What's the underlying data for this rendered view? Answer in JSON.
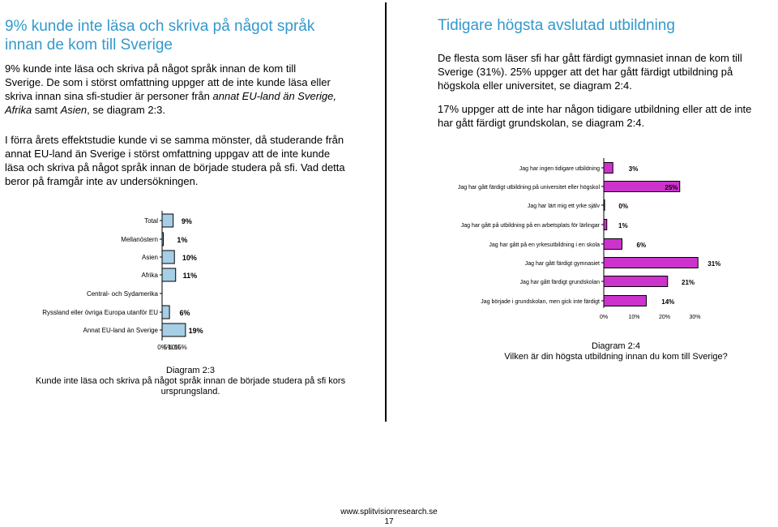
{
  "left": {
    "heading": "9% kunde inte läsa och skriva på något språk innan de kom till Sverige",
    "para1_plain": "9% kunde inte läsa och skriva på något språk innan de kom till Sverige. De som i störst omfattning uppger att de inte kunde läsa eller skriva innan sina sfi-studier är personer från ",
    "para1_italic": "annat EU-land än Sverige, Afrika",
    "para1_mid": " samt ",
    "para1_italic2": "Asien",
    "para1_end": ", se diagram 2:3.",
    "para2": "I förra årets effektstudie kunde vi se samma mönster, då studerande från annat EU-land än Sverige i störst omfattning uppgav att de inte kunde läsa och skriva på något språk innan de började studera på sfi. Vad detta beror på framgår inte av undersökningen.",
    "caption_title": "Diagram 2:3",
    "caption_text": "Kunde inte läsa och skriva på något språk innan de började studera på sfi kors ursprungsland."
  },
  "right": {
    "heading": "Tidigare högsta avslutad utbildning",
    "para1": "De flesta som läser sfi har gått färdigt gymnasiet innan de kom till Sverige (31%). 25% uppger att det har gått färdigt utbildning på högskola eller universitet, se diagram 2:4.",
    "para2": "17% uppger att de inte har någon tidigare utbildning eller att de inte har gått färdigt grundskolan, se diagram 2:4.",
    "caption_title": "Diagram 2:4",
    "caption_text": "Vilken är din högsta utbildning innan du kom till Sverige?"
  },
  "footer": {
    "url": "www.splitvisionresearch.se",
    "page": "17"
  },
  "chart_data": [
    {
      "type": "bar",
      "orientation": "horizontal",
      "categories": [
        "Total",
        "Mellanöstern",
        "Asien",
        "Afrika",
        "Central- och Sydamerika",
        "Ryssland eller övriga Europa utanför EU",
        "Annat EU-land än Sverige"
      ],
      "values": [
        9,
        1,
        10,
        11,
        0,
        6,
        19
      ],
      "labels": [
        "9%",
        "1%",
        "10%",
        "11%",
        "",
        "6%",
        "19%"
      ],
      "xticks": [
        "0%",
        "5%",
        "10%",
        "15%"
      ],
      "xlim": [
        0,
        19
      ],
      "bar_color": "#a6cfe6",
      "xlabel": "",
      "ylabel": "",
      "title": ""
    },
    {
      "type": "bar",
      "orientation": "horizontal",
      "categories": [
        "Jag har ingen tidigare utbildning",
        "Jag har gått färdigt utbildning på universitet eller högskol",
        "Jag har lärt mig ett yrke själv",
        "Jag har gått på utbildning på en arbetsplats för lärlingar",
        "Jag har gått på en yrkesutbildning i en skola",
        "Jag har gått färdigt gymnasiet",
        "Jag har gått färdigt grundskolan",
        "Jag började i grundskolan, men gick inte färdigt"
      ],
      "values": [
        3,
        25,
        0,
        1,
        6,
        31,
        21,
        14
      ],
      "labels": [
        "3%",
        "25%",
        "0%",
        "1%",
        "6%",
        "31%",
        "21%",
        "14%"
      ],
      "xticks": [
        "0%",
        "10%",
        "20%",
        "30%"
      ],
      "xlim": [
        0,
        31
      ],
      "bar_color": "#cc33cc",
      "xlabel": "",
      "ylabel": "",
      "title": ""
    }
  ]
}
